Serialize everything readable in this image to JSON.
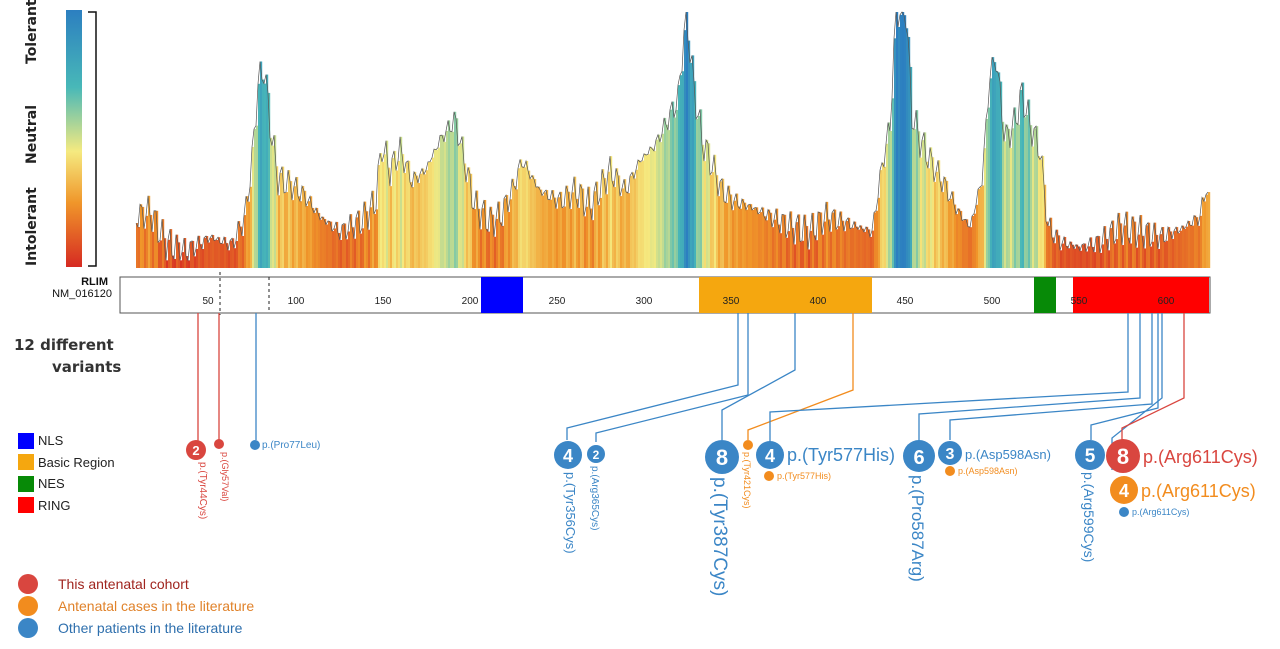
{
  "colorbar": {
    "top_label": "Tolerant",
    "mid_label": "Neutral",
    "bottom_label": "Intolerant"
  },
  "gene": {
    "symbol": "RLIM",
    "transcript": "NM_016120",
    "ticks": [
      "50",
      "100",
      "150",
      "200",
      "250",
      "300",
      "350",
      "400",
      "450",
      "500",
      "550",
      "600"
    ]
  },
  "variants_label": {
    "line1": "12 different",
    "line2": "variants"
  },
  "domain_legend": [
    {
      "label": "NLS",
      "color": "#0000ff"
    },
    {
      "label": "Basic Region",
      "color": "#f5a70f"
    },
    {
      "label": "NES",
      "color": "#078a07"
    },
    {
      "label": "RING",
      "color": "#ff0000"
    }
  ],
  "group_legend": [
    {
      "label": "This antenatal cohort",
      "color": "#d9463f",
      "text_color": "#a0251f"
    },
    {
      "label": "Antenatal cases in the literature",
      "color": "#f28c1e",
      "text_color": "#e0822a"
    },
    {
      "label": "Other patients in the literature",
      "color": "#3b86c6",
      "text_color": "#2e6fad"
    }
  ],
  "variant_labels": {
    "v1": {
      "count": "2",
      "name": "p.(Tyr44Cys)"
    },
    "v2": {
      "name": "p.(Gly57Val)"
    },
    "v3": {
      "name": "p.(Pro77Leu)"
    },
    "v4": {
      "count": "4",
      "name": "p.(Tyr356Cys)"
    },
    "v5": {
      "count": "2",
      "name": "p.(Arg365Cys)"
    },
    "v6": {
      "count": "8",
      "name": "p.(Tyr387Cys)"
    },
    "v7": {
      "name": "p.(Tyr421Cys)"
    },
    "v8": {
      "count": "4",
      "name": "p.(Tyr577His)",
      "sub_name": "p.(Tyr577His)"
    },
    "v9": {
      "count": "6",
      "name": "p.(Pro587Arg)"
    },
    "v10": {
      "count": "3",
      "name": "p.(Asp598Asn)",
      "sub_name": "p.(Asp598Asn)"
    },
    "v11": {
      "count": "5",
      "name": "p.(Arg599Cys)"
    },
    "v12": {
      "count": "8",
      "name": "p.(Arg611Cys)",
      "count2": "4",
      "name2": "p.(Arg611Cys)",
      "name3": "p.(Arg611Cys)"
    }
  },
  "colors": {
    "intolerant": "#d62a22",
    "neutral": "#f5ea80",
    "tolerant": "#2c7fc0"
  }
}
